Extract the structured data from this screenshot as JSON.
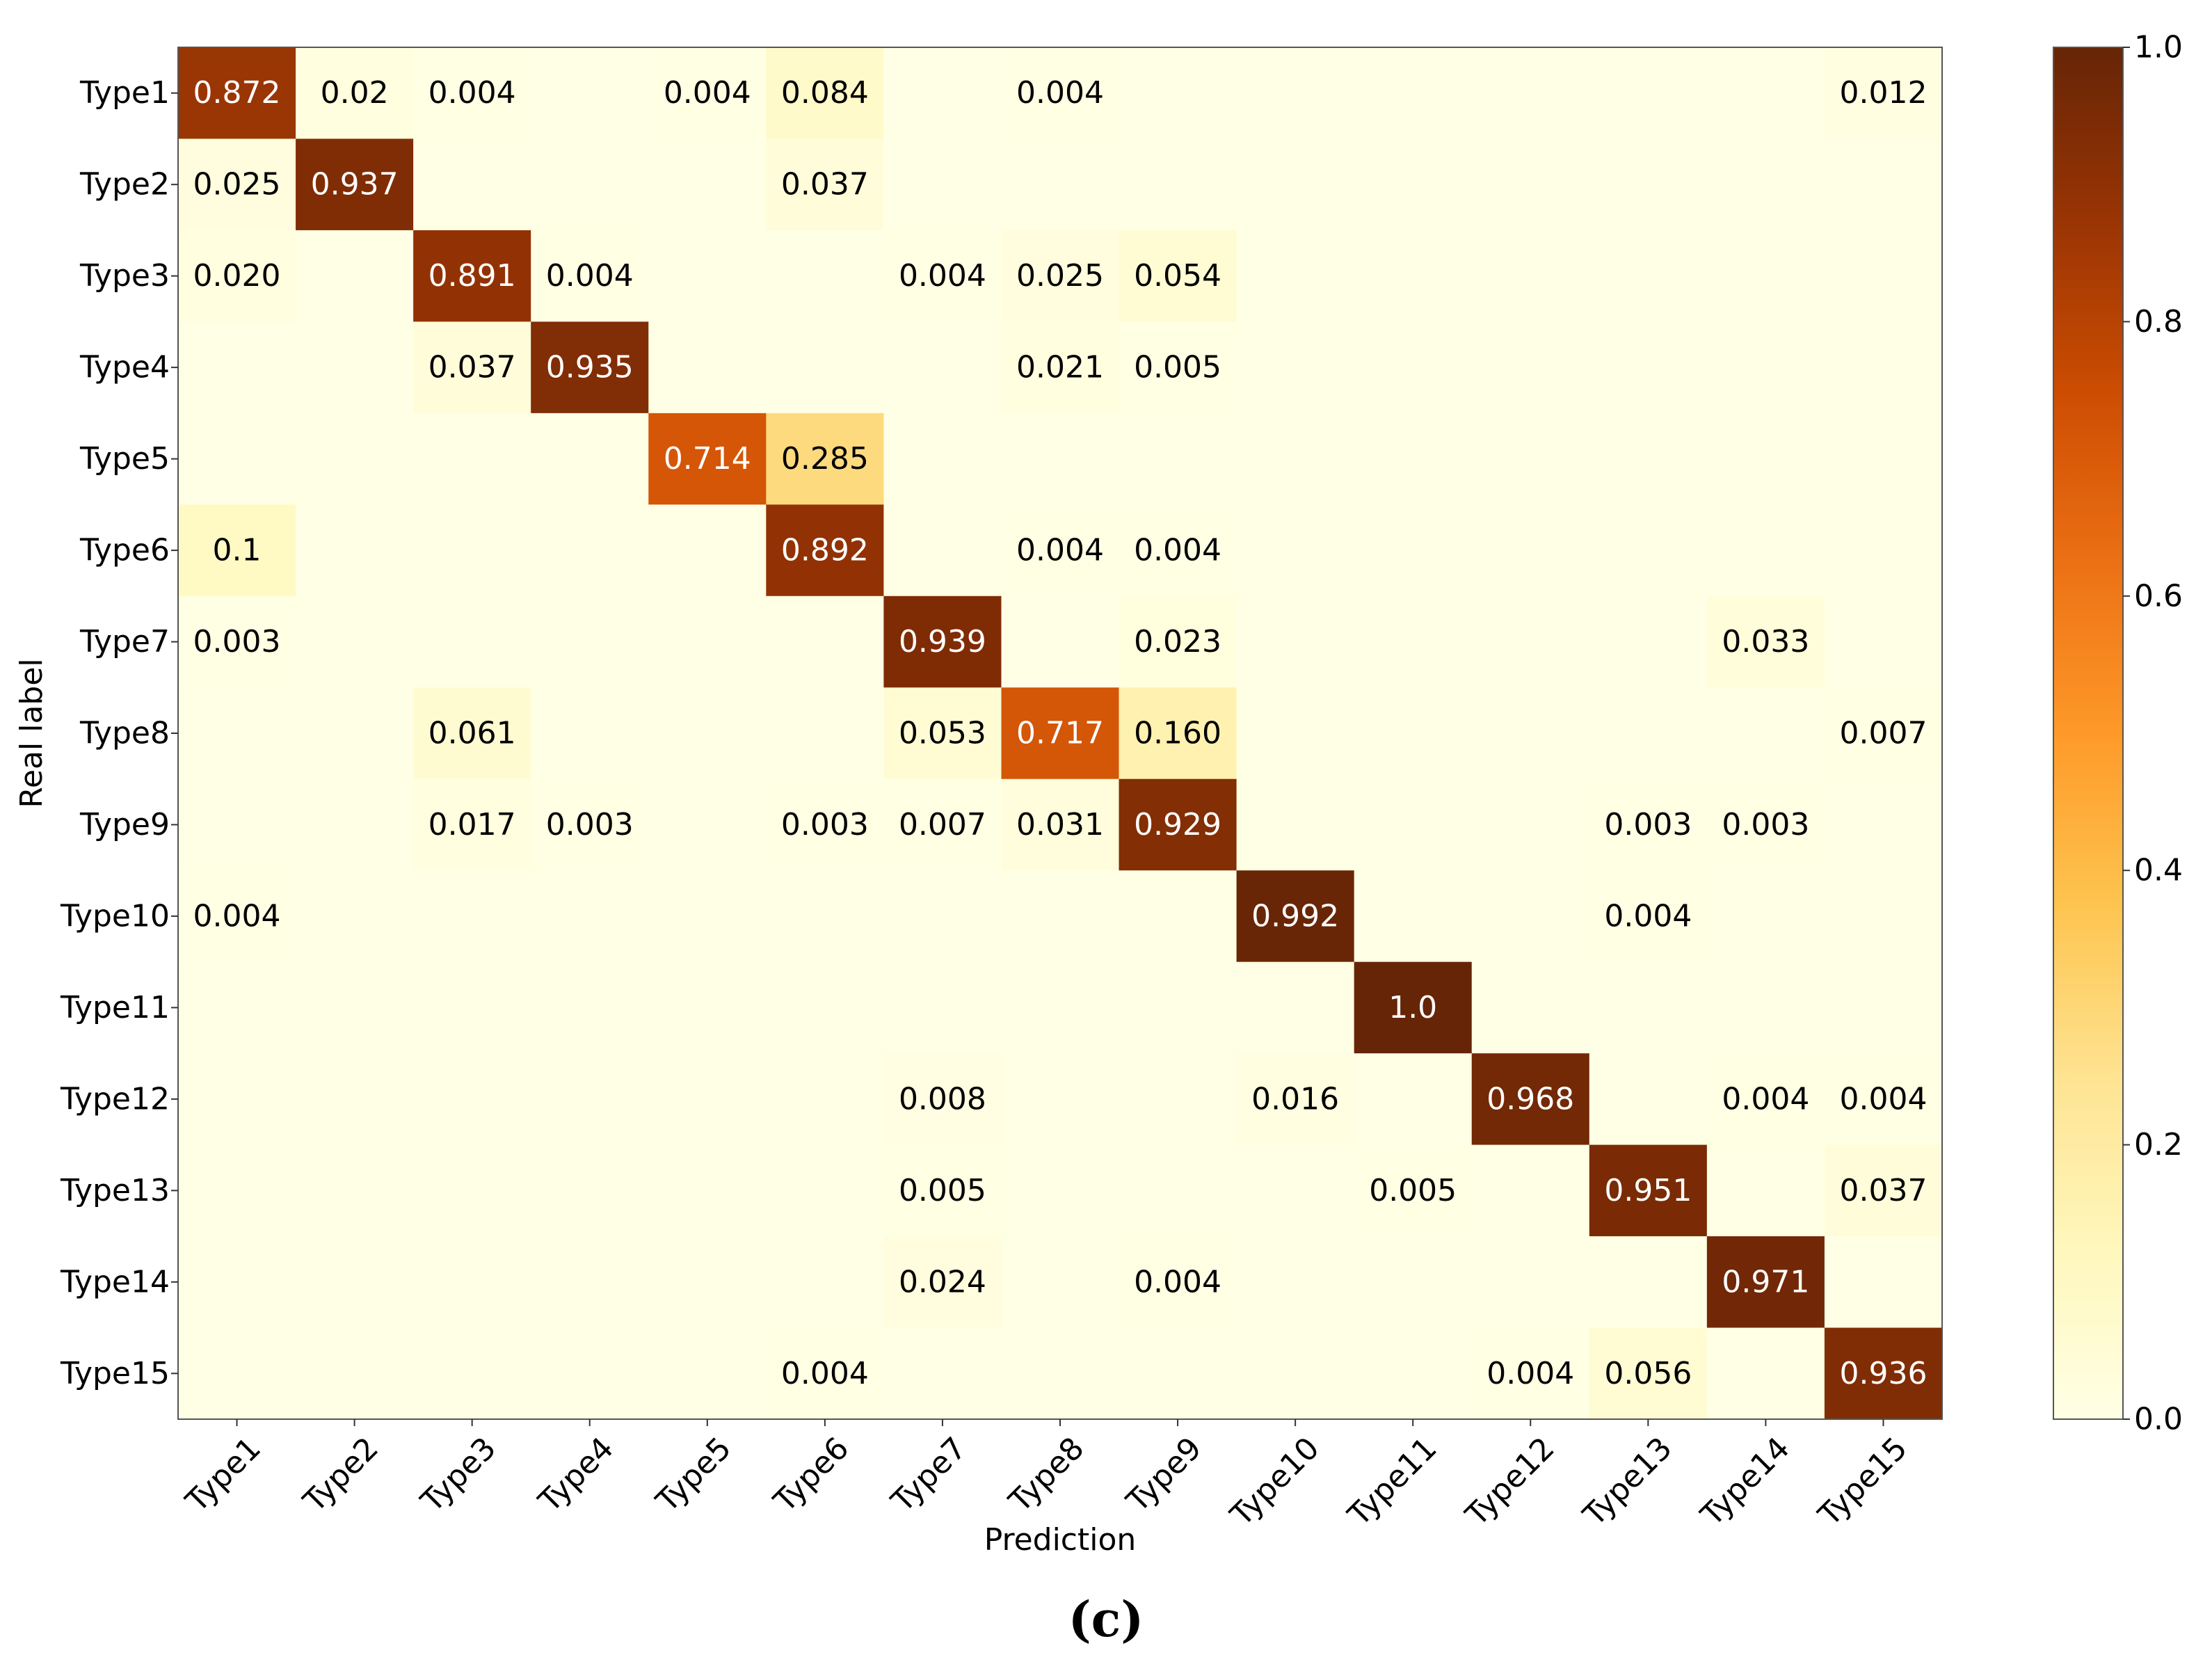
{
  "chart_data": {
    "type": "heatmap",
    "title": "",
    "xlabel": "Prediction",
    "ylabel": "Real label",
    "caption": "(c)",
    "x_categories": [
      "Type1",
      "Type2",
      "Type3",
      "Type4",
      "Type5",
      "Type6",
      "Type7",
      "Type8",
      "Type9",
      "Type10",
      "Type11",
      "Type12",
      "Type13",
      "Type14",
      "Type15"
    ],
    "y_categories": [
      "Type1",
      "Type2",
      "Type3",
      "Type4",
      "Type5",
      "Type6",
      "Type7",
      "Type8",
      "Type9",
      "Type10",
      "Type11",
      "Type12",
      "Type13",
      "Type14",
      "Type15"
    ],
    "matrix": [
      [
        0.872,
        0.02,
        0.004,
        null,
        0.004,
        0.084,
        null,
        0.004,
        null,
        null,
        null,
        null,
        null,
        null,
        0.012
      ],
      [
        0.025,
        0.937,
        null,
        null,
        null,
        0.037,
        null,
        null,
        null,
        null,
        null,
        null,
        null,
        null,
        null
      ],
      [
        0.02,
        null,
        0.891,
        0.004,
        null,
        null,
        0.004,
        0.025,
        0.054,
        null,
        null,
        null,
        null,
        null,
        null
      ],
      [
        null,
        null,
        0.037,
        0.935,
        null,
        null,
        null,
        0.021,
        0.005,
        null,
        null,
        null,
        null,
        null,
        null
      ],
      [
        null,
        null,
        null,
        null,
        0.714,
        0.285,
        null,
        null,
        null,
        null,
        null,
        null,
        null,
        null,
        null
      ],
      [
        0.1,
        null,
        null,
        null,
        null,
        0.892,
        null,
        0.004,
        0.004,
        null,
        null,
        null,
        null,
        null,
        null
      ],
      [
        0.003,
        null,
        null,
        null,
        null,
        null,
        0.939,
        null,
        0.023,
        null,
        null,
        null,
        null,
        0.033,
        null
      ],
      [
        null,
        null,
        0.061,
        null,
        null,
        null,
        0.053,
        0.717,
        0.16,
        null,
        null,
        null,
        null,
        null,
        0.007
      ],
      [
        null,
        null,
        0.017,
        0.003,
        null,
        0.003,
        0.007,
        0.031,
        0.929,
        null,
        null,
        null,
        0.003,
        0.003,
        null
      ],
      [
        0.004,
        null,
        null,
        null,
        null,
        null,
        null,
        null,
        null,
        0.992,
        null,
        null,
        0.004,
        null,
        null
      ],
      [
        null,
        null,
        null,
        null,
        null,
        null,
        null,
        null,
        null,
        null,
        1.0,
        null,
        null,
        null,
        null
      ],
      [
        null,
        null,
        null,
        null,
        null,
        null,
        0.008,
        null,
        null,
        0.016,
        null,
        0.968,
        null,
        0.004,
        0.004
      ],
      [
        null,
        null,
        null,
        null,
        null,
        null,
        0.005,
        null,
        null,
        null,
        0.005,
        null,
        0.951,
        null,
        0.037
      ],
      [
        null,
        null,
        null,
        null,
        null,
        null,
        0.024,
        null,
        0.004,
        null,
        null,
        null,
        null,
        0.971,
        null
      ],
      [
        null,
        null,
        null,
        null,
        null,
        0.004,
        null,
        null,
        null,
        null,
        null,
        0.004,
        0.056,
        null,
        0.936
      ]
    ],
    "cell_labels": [
      [
        "0.872",
        "0.02",
        "0.004",
        "",
        "0.004",
        "0.084",
        "",
        "0.004",
        "",
        "",
        "",
        "",
        "",
        "",
        "0.012"
      ],
      [
        "0.025",
        "0.937",
        "",
        "",
        "",
        "0.037",
        "",
        "",
        "",
        "",
        "",
        "",
        "",
        "",
        ""
      ],
      [
        "0.020",
        "",
        "0.891",
        "0.004",
        "",
        "",
        "0.004",
        "0.025",
        "0.054",
        "",
        "",
        "",
        "",
        "",
        ""
      ],
      [
        "",
        "",
        "0.037",
        "0.935",
        "",
        "",
        "",
        "0.021",
        "0.005",
        "",
        "",
        "",
        "",
        "",
        ""
      ],
      [
        "",
        "",
        "",
        "",
        "0.714",
        "0.285",
        "",
        "",
        "",
        "",
        "",
        "",
        "",
        "",
        ""
      ],
      [
        "0.1",
        "",
        "",
        "",
        "",
        "0.892",
        "",
        "0.004",
        "0.004",
        "",
        "",
        "",
        "",
        "",
        ""
      ],
      [
        "0.003",
        "",
        "",
        "",
        "",
        "",
        "0.939",
        "",
        "0.023",
        "",
        "",
        "",
        "",
        "0.033",
        ""
      ],
      [
        "",
        "",
        "0.061",
        "",
        "",
        "",
        "0.053",
        "0.717",
        "0.160",
        "",
        "",
        "",
        "",
        "",
        "0.007"
      ],
      [
        "",
        "",
        "0.017",
        "0.003",
        "",
        "0.003",
        "0.007",
        "0.031",
        "0.929",
        "",
        "",
        "",
        "0.003",
        "0.003",
        ""
      ],
      [
        "0.004",
        "",
        "",
        "",
        "",
        "",
        "",
        "",
        "",
        "0.992",
        "",
        "",
        "0.004",
        "",
        ""
      ],
      [
        "",
        "",
        "",
        "",
        "",
        "",
        "",
        "",
        "",
        "",
        "1.0",
        "",
        "",
        "",
        ""
      ],
      [
        "",
        "",
        "",
        "",
        "",
        "",
        "0.008",
        "",
        "",
        "0.016",
        "",
        "0.968",
        "",
        "0.004",
        "0.004"
      ],
      [
        "",
        "",
        "",
        "",
        "",
        "",
        "0.005",
        "",
        "",
        "",
        "0.005",
        "",
        "0.951",
        "",
        "0.037"
      ],
      [
        "",
        "",
        "",
        "",
        "",
        "",
        "0.024",
        "",
        "0.004",
        "",
        "",
        "",
        "",
        "0.971",
        ""
      ],
      [
        "",
        "",
        "",
        "",
        "",
        "0.004",
        "",
        "",
        "",
        "",
        "",
        "0.004",
        "0.056",
        "",
        "0.936"
      ]
    ],
    "colorbar": {
      "range": [
        0.0,
        1.0
      ],
      "ticks": [
        0.0,
        0.2,
        0.4,
        0.6,
        0.8,
        1.0
      ],
      "tick_labels": [
        "0.0",
        "0.2",
        "0.4",
        "0.6",
        "0.8",
        "1.0"
      ]
    },
    "colormap": [
      "#ffffe5",
      "#fff7bc",
      "#fee391",
      "#fec44f",
      "#fe9929",
      "#ec7014",
      "#cc4c02",
      "#993404",
      "#662506"
    ]
  }
}
